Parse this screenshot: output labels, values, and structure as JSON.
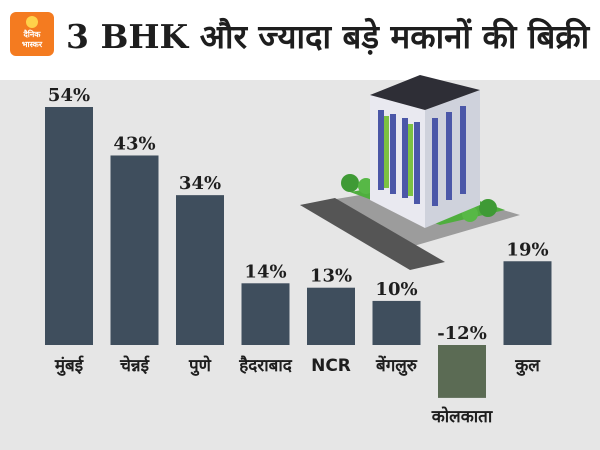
{
  "header": {
    "title": "3 BHK और ज्यादा बड़े मकानों की बिक्री",
    "logo_text": "दैनिक\nभास्कर"
  },
  "colors": {
    "bar": "#3f4e5d",
    "bar_negative": "#5b6b54",
    "background": "#e6e6e6",
    "logo": "#f47b20"
  },
  "illustration": "apartment-building",
  "chart_data": {
    "type": "bar",
    "title": "3 BHK और ज्यादा बड़े मकानों की बिक्री",
    "categories": [
      "मुंबई",
      "चेन्नई",
      "पुणे",
      "हैदराबाद",
      "NCR",
      "बेंगलुरु",
      "कोलकाता",
      "कुल"
    ],
    "values": [
      54,
      43,
      34,
      14,
      13,
      10,
      -12,
      19
    ],
    "value_labels": [
      "54%",
      "43%",
      "34%",
      "14%",
      "13%",
      "10%",
      "-12%",
      "19%"
    ],
    "unit": "%",
    "xlabel": "",
    "ylabel": "",
    "ylim": [
      -12,
      54
    ],
    "grid": false,
    "legend": "none"
  }
}
